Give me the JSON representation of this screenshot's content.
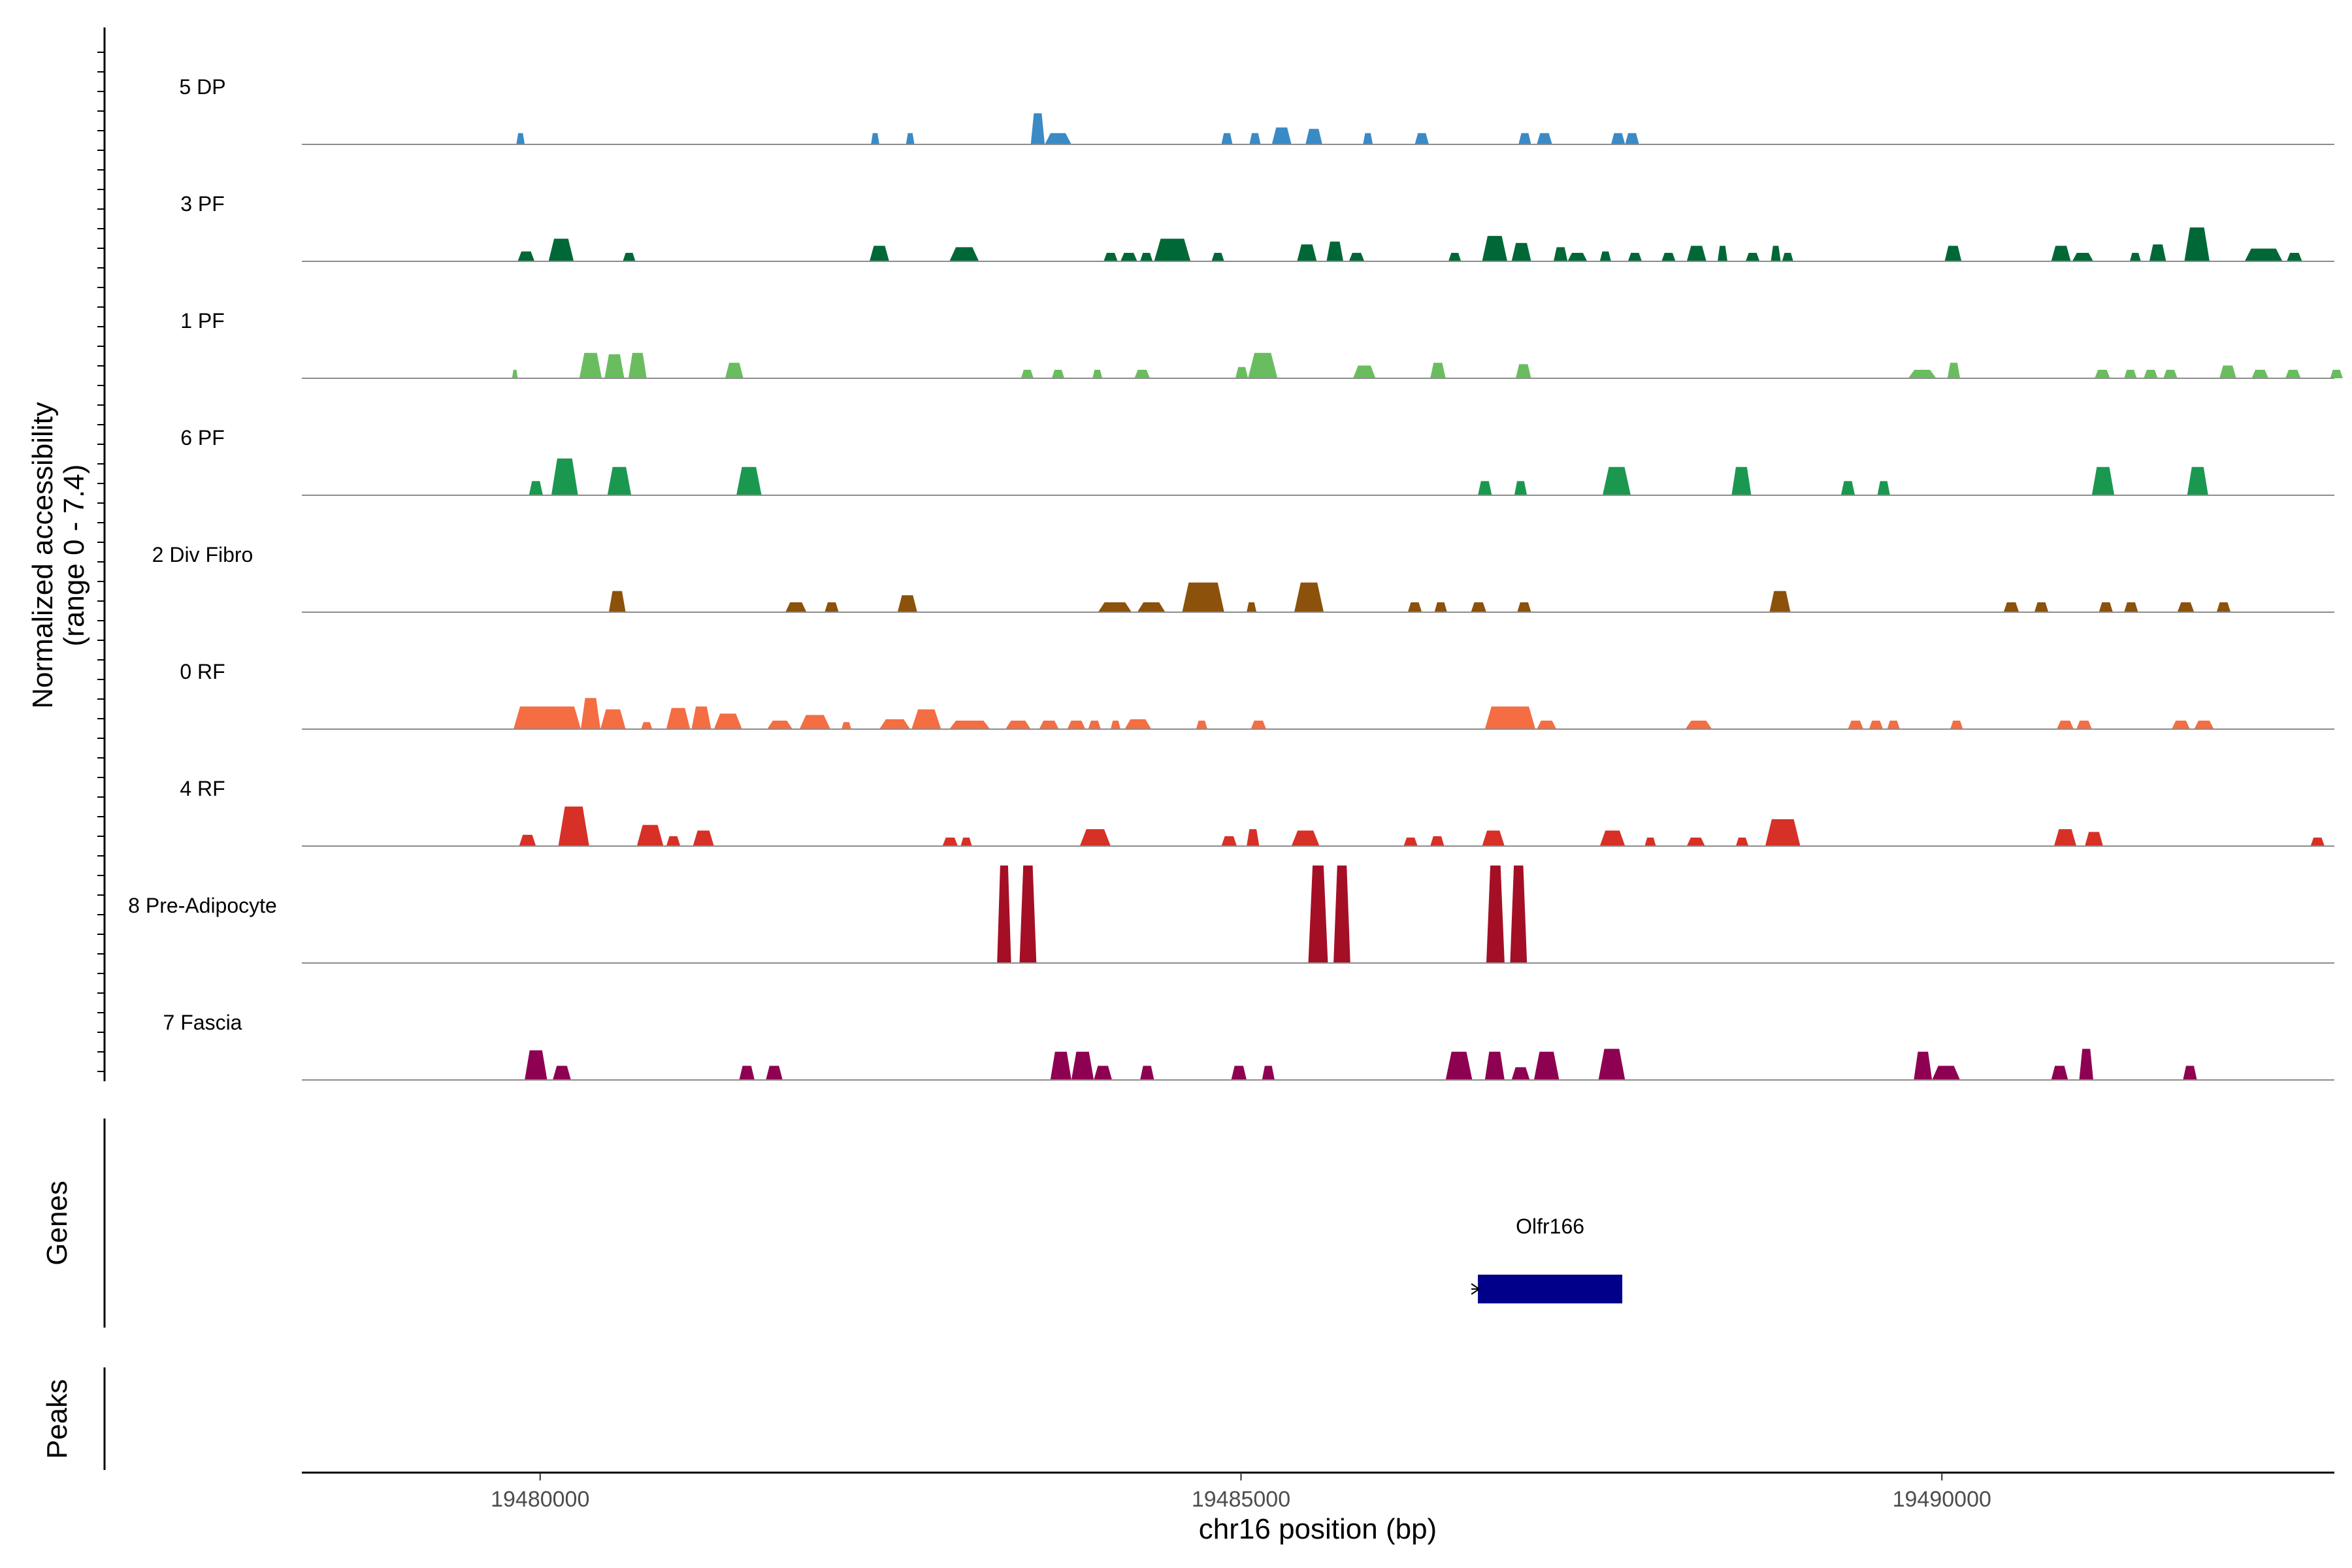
{
  "chart_data": {
    "type": "area",
    "title": "",
    "ylabel": "Normalized accessibility",
    "ylabel_range": "(range 0 - 7.4)",
    "xlabel": "chr16 position (bp)",
    "xlim": [
      19478300,
      19492800
    ],
    "ylim": [
      0,
      7.4
    ],
    "x_ticks": [
      19480000,
      19485000,
      19490000
    ],
    "x_tick_labels": [
      "19480000",
      "19485000",
      "19490000"
    ],
    "tracks": [
      {
        "name": "5 DP",
        "color": "#3a8ac6",
        "peaks": [
          [
            19479830,
            19479890,
            0.8
          ],
          [
            19482360,
            19482420,
            0.8
          ],
          [
            19482610,
            19482670,
            0.8
          ],
          [
            19483500,
            19483600,
            2.2
          ],
          [
            19483600,
            19483790,
            0.8
          ],
          [
            19484860,
            19484940,
            0.8
          ],
          [
            19485060,
            19485140,
            0.8
          ],
          [
            19485220,
            19485360,
            1.2
          ],
          [
            19485460,
            19485580,
            1.1
          ],
          [
            19485870,
            19485940,
            0.8
          ],
          [
            19486240,
            19486340,
            0.8
          ],
          [
            19486980,
            19487070,
            0.8
          ],
          [
            19487110,
            19487220,
            0.8
          ],
          [
            19487640,
            19487740,
            0.8
          ],
          [
            19487740,
            19487840,
            0.8
          ]
        ]
      },
      {
        "name": "3 PF",
        "color": "#006837",
        "peaks": [
          [
            19479840,
            19479960,
            0.7
          ],
          [
            19480060,
            19480240,
            1.6
          ],
          [
            19480590,
            19480680,
            0.6
          ],
          [
            19482350,
            19482490,
            1.1
          ],
          [
            19482920,
            19483130,
            1.0
          ],
          [
            19484020,
            19484120,
            0.6
          ],
          [
            19484140,
            19484260,
            0.6
          ],
          [
            19484280,
            19484370,
            0.6
          ],
          [
            19484380,
            19484640,
            1.6
          ],
          [
            19484790,
            19484880,
            0.6
          ],
          [
            19485400,
            19485540,
            1.2
          ],
          [
            19485610,
            19485730,
            1.4
          ],
          [
            19485770,
            19485880,
            0.6
          ],
          [
            19486480,
            19486570,
            0.6
          ],
          [
            19486720,
            19486900,
            1.8
          ],
          [
            19486930,
            19487070,
            1.3
          ],
          [
            19487230,
            19487330,
            1.0
          ],
          [
            19487330,
            19487470,
            0.6
          ],
          [
            19487560,
            19487640,
            0.7
          ],
          [
            19487760,
            19487860,
            0.6
          ],
          [
            19488000,
            19488100,
            0.6
          ],
          [
            19488180,
            19488320,
            1.1
          ],
          [
            19488400,
            19488470,
            1.1
          ],
          [
            19488600,
            19488700,
            0.6
          ],
          [
            19488780,
            19488850,
            1.1
          ],
          [
            19488860,
            19488940,
            0.6
          ],
          [
            19490020,
            19490140,
            1.1
          ],
          [
            19490780,
            19490920,
            1.1
          ],
          [
            19490930,
            19491080,
            0.6
          ],
          [
            19491340,
            19491420,
            0.6
          ],
          [
            19491480,
            19491600,
            1.2
          ],
          [
            19491730,
            19491910,
            2.4
          ],
          [
            19492160,
            19492430,
            0.9
          ],
          [
            19492460,
            19492570,
            0.6
          ]
        ]
      },
      {
        "name": "1 PF",
        "color": "#6abd5f",
        "peaks": [
          [
            19479800,
            19479840,
            0.6
          ],
          [
            19480280,
            19480440,
            1.8
          ],
          [
            19480460,
            19480600,
            1.7
          ],
          [
            19480630,
            19480760,
            1.8
          ],
          [
            19481320,
            19481450,
            1.1
          ],
          [
            19483430,
            19483520,
            0.6
          ],
          [
            19483650,
            19483740,
            0.6
          ],
          [
            19483940,
            19484010,
            0.6
          ],
          [
            19484240,
            19484350,
            0.6
          ],
          [
            19484960,
            19485050,
            0.8
          ],
          [
            19485050,
            19485260,
            1.8
          ],
          [
            19485800,
            19485960,
            0.9
          ],
          [
            19486350,
            19486460,
            1.1
          ],
          [
            19486960,
            19487070,
            1.0
          ],
          [
            19489760,
            19489960,
            0.6
          ],
          [
            19490040,
            19490130,
            1.1
          ],
          [
            19491090,
            19491200,
            0.6
          ],
          [
            19491300,
            19491390,
            0.6
          ],
          [
            19491440,
            19491540,
            0.6
          ],
          [
            19491580,
            19491680,
            0.6
          ],
          [
            19491980,
            19492100,
            0.9
          ],
          [
            19492210,
            19492330,
            0.6
          ],
          [
            19492450,
            19492560,
            0.6
          ],
          [
            19492770,
            19492860,
            0.6
          ]
        ]
      },
      {
        "name": "6 PF",
        "color": "#1a9850",
        "peaks": [
          [
            19479920,
            19480020,
            1.0
          ],
          [
            19480080,
            19480270,
            2.6
          ],
          [
            19480480,
            19480650,
            2.0
          ],
          [
            19481400,
            19481580,
            2.0
          ],
          [
            19486690,
            19486790,
            1.0
          ],
          [
            19486950,
            19487040,
            1.0
          ],
          [
            19487580,
            19487780,
            2.0
          ],
          [
            19488500,
            19488640,
            2.0
          ],
          [
            19489280,
            19489380,
            1.0
          ],
          [
            19489540,
            19489630,
            1.0
          ],
          [
            19491070,
            19491230,
            2.0
          ],
          [
            19491750,
            19491900,
            2.0
          ]
        ]
      },
      {
        "name": "2 Div Fibro",
        "color": "#8c510a",
        "peaks": [
          [
            19480490,
            19480610,
            1.5
          ],
          [
            19481750,
            19481900,
            0.7
          ],
          [
            19482030,
            19482130,
            0.7
          ],
          [
            19482550,
            19482690,
            1.2
          ],
          [
            19483980,
            19484220,
            0.7
          ],
          [
            19484260,
            19484460,
            0.7
          ],
          [
            19484580,
            19484880,
            2.1
          ],
          [
            19485040,
            19485110,
            0.7
          ],
          [
            19485380,
            19485590,
            2.1
          ],
          [
            19486190,
            19486290,
            0.7
          ],
          [
            19486380,
            19486470,
            0.7
          ],
          [
            19486640,
            19486750,
            0.7
          ],
          [
            19486970,
            19487070,
            0.7
          ],
          [
            19488770,
            19488920,
            1.5
          ],
          [
            19490440,
            19490550,
            0.7
          ],
          [
            19490660,
            19490760,
            0.7
          ],
          [
            19491120,
            19491220,
            0.7
          ],
          [
            19491300,
            19491400,
            0.7
          ],
          [
            19491680,
            19491800,
            0.7
          ],
          [
            19491960,
            19492060,
            0.7
          ]
        ]
      },
      {
        "name": "0 RF",
        "color": "#f46d43",
        "peaks": [
          [
            19479810,
            19480290,
            1.6
          ],
          [
            19480290,
            19480430,
            2.2
          ],
          [
            19480430,
            19480610,
            1.4
          ],
          [
            19480720,
            19480800,
            0.5
          ],
          [
            19480900,
            19481070,
            1.5
          ],
          [
            19481080,
            19481220,
            1.6
          ],
          [
            19481240,
            19481440,
            1.1
          ],
          [
            19481620,
            19481800,
            0.6
          ],
          [
            19481850,
            19482070,
            1.0
          ],
          [
            19482150,
            19482220,
            0.5
          ],
          [
            19482420,
            19482640,
            0.7
          ],
          [
            19482650,
            19482860,
            1.4
          ],
          [
            19482920,
            19483210,
            0.6
          ],
          [
            19483320,
            19483500,
            0.6
          ],
          [
            19483560,
            19483700,
            0.6
          ],
          [
            19483760,
            19483890,
            0.6
          ],
          [
            19483910,
            19484000,
            0.6
          ],
          [
            19484070,
            19484140,
            0.6
          ],
          [
            19484170,
            19484360,
            0.7
          ],
          [
            19484680,
            19484760,
            0.6
          ],
          [
            19485070,
            19485180,
            0.6
          ],
          [
            19486740,
            19487100,
            1.6
          ],
          [
            19487110,
            19487250,
            0.6
          ],
          [
            19488170,
            19488360,
            0.6
          ],
          [
            19489330,
            19489440,
            0.6
          ],
          [
            19489480,
            19489580,
            0.6
          ],
          [
            19489610,
            19489700,
            0.6
          ],
          [
            19490060,
            19490150,
            0.6
          ],
          [
            19490820,
            19490940,
            0.6
          ],
          [
            19490960,
            19491070,
            0.6
          ],
          [
            19491640,
            19491770,
            0.6
          ],
          [
            19491800,
            19491940,
            0.6
          ]
        ]
      },
      {
        "name": "4 RF",
        "color": "#d73027",
        "peaks": [
          [
            19479850,
            19479970,
            0.8
          ],
          [
            19480130,
            19480350,
            2.8
          ],
          [
            19480690,
            19480880,
            1.5
          ],
          [
            19480900,
            19481000,
            0.7
          ],
          [
            19481090,
            19481240,
            1.1
          ],
          [
            19482870,
            19482980,
            0.6
          ],
          [
            19483000,
            19483080,
            0.6
          ],
          [
            19483850,
            19484070,
            1.2
          ],
          [
            19484860,
            19484970,
            0.7
          ],
          [
            19485040,
            19485130,
            1.2
          ],
          [
            19485360,
            19485560,
            1.1
          ],
          [
            19486160,
            19486260,
            0.6
          ],
          [
            19486350,
            19486450,
            0.7
          ],
          [
            19486720,
            19486880,
            1.1
          ],
          [
            19487560,
            19487740,
            1.1
          ],
          [
            19487880,
            19487960,
            0.6
          ],
          [
            19488180,
            19488310,
            0.6
          ],
          [
            19488530,
            19488620,
            0.6
          ],
          [
            19488740,
            19488990,
            1.9
          ],
          [
            19490800,
            19490960,
            1.2
          ],
          [
            19491020,
            19491150,
            1.0
          ],
          [
            19492630,
            19492730,
            0.6
          ]
        ]
      },
      {
        "name": "8 Pre-Adipocyte",
        "color": "#a50f26",
        "peaks": [
          [
            19483260,
            19483360,
            6.9
          ],
          [
            19483420,
            19483540,
            6.9
          ],
          [
            19485480,
            19485620,
            6.9
          ],
          [
            19485660,
            19485780,
            6.9
          ],
          [
            19486750,
            19486880,
            6.9
          ],
          [
            19486920,
            19487040,
            6.9
          ]
        ]
      },
      {
        "name": "7 Fascia",
        "color": "#8e0152",
        "peaks": [
          [
            19479890,
            19480050,
            2.1
          ],
          [
            19480090,
            19480220,
            1.0
          ],
          [
            19481420,
            19481530,
            1.0
          ],
          [
            19481610,
            19481730,
            1.0
          ],
          [
            19483640,
            19483790,
            2.0
          ],
          [
            19483790,
            19483950,
            2.0
          ],
          [
            19483950,
            19484080,
            1.0
          ],
          [
            19484280,
            19484380,
            1.0
          ],
          [
            19484930,
            19485040,
            1.0
          ],
          [
            19485150,
            19485240,
            1.0
          ],
          [
            19486460,
            19486650,
            2.0
          ],
          [
            19486740,
            19486880,
            2.0
          ],
          [
            19486930,
            19487060,
            0.9
          ],
          [
            19487090,
            19487270,
            2.0
          ],
          [
            19487550,
            19487740,
            2.2
          ],
          [
            19489800,
            19489930,
            2.0
          ],
          [
            19489930,
            19490130,
            1.0
          ],
          [
            19490780,
            19490900,
            1.0
          ],
          [
            19490980,
            19491080,
            2.2
          ],
          [
            19491720,
            19491820,
            1.0
          ]
        ]
      }
    ],
    "genes": [
      {
        "name": "Olfr166",
        "start": 19486690,
        "end": 19487720,
        "strand": "-",
        "color": "#00008b"
      }
    ],
    "peaks_track_label": "Peaks",
    "genes_track_label": "Genes"
  }
}
